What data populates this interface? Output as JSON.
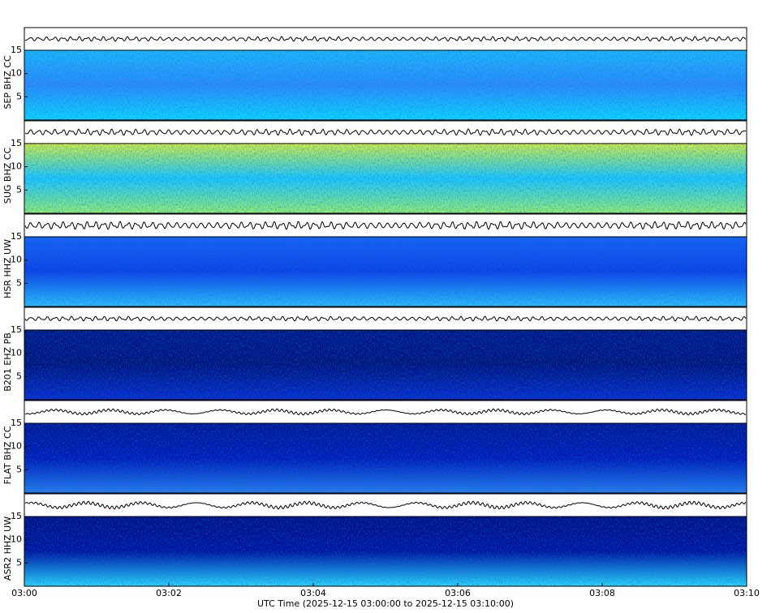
{
  "chart_data": {
    "type": "spectrogram",
    "xlabel": "UTC Time (2025-12-15 03:00:00 to 2025-12-15 03:10:00)",
    "xlim": [
      0,
      10
    ],
    "xticks": [
      {
        "value": 0,
        "label": "03:00"
      },
      {
        "value": 2,
        "label": "03:02"
      },
      {
        "value": 4,
        "label": "03:04"
      },
      {
        "value": 6,
        "label": "03:06"
      },
      {
        "value": 8,
        "label": "03:08"
      },
      {
        "value": 10,
        "label": "03:10"
      }
    ],
    "ylim": [
      0,
      15
    ],
    "yticks": [
      5,
      10,
      15
    ],
    "panels": [
      {
        "name": "SEP BHZ CC",
        "colors": [
          "#10d8ff",
          "#2f8cff",
          "#22b8ff"
        ]
      },
      {
        "name": "SUG BHZ CC",
        "colors": [
          "#9af070",
          "#20c8ff",
          "#d8f040"
        ]
      },
      {
        "name": "HSR HHZ UW",
        "colors": [
          "#30c0ff",
          "#1040e8",
          "#1a60f8"
        ]
      },
      {
        "name": "B201 EHZ PB",
        "colors": [
          "#0a2ad0",
          "#00107c",
          "#001488"
        ]
      },
      {
        "name": "FLAT BHZ CC",
        "colors": [
          "#2a7cf0",
          "#0018b8",
          "#001494"
        ]
      },
      {
        "name": "ASR2 HHZ UW",
        "colors": [
          "#30d8ff",
          "#0010a0",
          "#000c84"
        ]
      }
    ]
  }
}
